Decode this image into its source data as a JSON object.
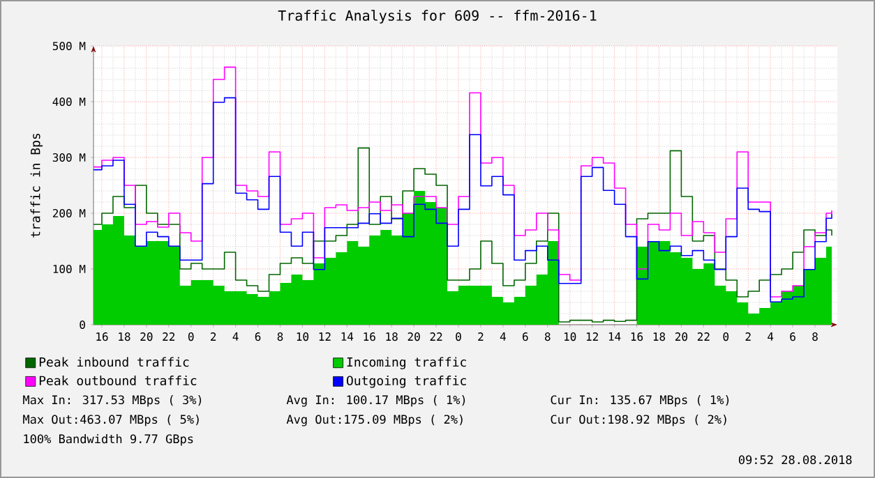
{
  "chart_data": {
    "type": "step",
    "title": "Traffic Analysis for 609 -- ffm-2016-1",
    "ylabel": "traffic in Bps",
    "x": [
      "2018-08-25T15:15",
      "2018-08-25T16:00",
      "2018-08-25T17:00",
      "2018-08-25T18:00",
      "2018-08-25T19:00",
      "2018-08-25T20:00",
      "2018-08-25T21:00",
      "2018-08-25T22:00",
      "2018-08-25T23:00",
      "2018-08-26T00:00",
      "2018-08-26T01:00",
      "2018-08-26T02:00",
      "2018-08-26T03:00",
      "2018-08-26T04:00",
      "2018-08-26T05:00",
      "2018-08-26T06:00",
      "2018-08-26T07:00",
      "2018-08-26T08:00",
      "2018-08-26T09:00",
      "2018-08-26T10:00",
      "2018-08-26T11:00",
      "2018-08-26T12:00",
      "2018-08-26T13:00",
      "2018-08-26T14:00",
      "2018-08-26T15:00",
      "2018-08-26T16:00",
      "2018-08-26T17:00",
      "2018-08-26T18:00",
      "2018-08-26T19:00",
      "2018-08-26T20:00",
      "2018-08-26T21:00",
      "2018-08-26T22:00",
      "2018-08-26T23:00",
      "2018-08-27T00:00",
      "2018-08-27T01:00",
      "2018-08-27T02:00",
      "2018-08-27T03:00",
      "2018-08-27T04:00",
      "2018-08-27T05:00",
      "2018-08-27T06:00",
      "2018-08-27T07:00",
      "2018-08-27T08:00",
      "2018-08-27T09:00",
      "2018-08-27T10:00",
      "2018-08-27T11:00",
      "2018-08-27T12:00",
      "2018-08-27T13:00",
      "2018-08-27T14:00",
      "2018-08-27T15:00",
      "2018-08-27T16:00",
      "2018-08-27T17:00",
      "2018-08-27T18:00",
      "2018-08-27T19:00",
      "2018-08-27T20:00",
      "2018-08-27T21:00",
      "2018-08-27T22:00",
      "2018-08-27T23:00",
      "2018-08-28T00:00",
      "2018-08-28T01:00",
      "2018-08-28T02:00",
      "2018-08-28T03:00",
      "2018-08-28T04:00",
      "2018-08-28T05:00",
      "2018-08-28T06:00",
      "2018-08-28T07:00",
      "2018-08-28T08:00",
      "2018-08-28T09:00",
      "2018-08-28T09:30"
    ],
    "series": [
      {
        "name": "Peak inbound traffic",
        "color": "#006600",
        "values": [
          180,
          200,
          230,
          210,
          250,
          200,
          180,
          180,
          100,
          110,
          100,
          100,
          130,
          80,
          70,
          60,
          90,
          110,
          120,
          110,
          150,
          150,
          160,
          180,
          317,
          180,
          230,
          190,
          240,
          280,
          270,
          250,
          80,
          80,
          100,
          150,
          110,
          70,
          80,
          110,
          150,
          200,
          5,
          8,
          8,
          5,
          8,
          6,
          8,
          190,
          200,
          200,
          312,
          230,
          150,
          160,
          100,
          80,
          50,
          60,
          80,
          90,
          100,
          130,
          170,
          160,
          170,
          160
        ]
      },
      {
        "name": "Incoming traffic",
        "type": "area",
        "color": "#00cc00",
        "values": [
          170,
          180,
          195,
          160,
          140,
          150,
          150,
          140,
          70,
          80,
          80,
          70,
          60,
          60,
          55,
          50,
          60,
          75,
          90,
          80,
          110,
          120,
          130,
          150,
          140,
          160,
          170,
          160,
          200,
          240,
          220,
          210,
          60,
          70,
          70,
          70,
          50,
          40,
          50,
          70,
          90,
          150,
          0,
          0,
          0,
          0,
          0,
          0,
          0,
          140,
          150,
          150,
          130,
          120,
          100,
          110,
          70,
          60,
          40,
          20,
          30,
          40,
          60,
          70,
          100,
          120,
          140,
          136
        ]
      },
      {
        "name": "Peak outbound traffic",
        "color": "#ff00ff",
        "values": [
          283,
          295,
          300,
          250,
          180,
          185,
          175,
          200,
          165,
          150,
          300,
          440,
          462,
          250,
          240,
          230,
          310,
          180,
          190,
          200,
          120,
          210,
          215,
          205,
          210,
          220,
          205,
          215,
          200,
          230,
          230,
          210,
          180,
          230,
          416,
          290,
          300,
          250,
          160,
          170,
          200,
          170,
          90,
          80,
          285,
          300,
          290,
          245,
          180,
          100,
          180,
          170,
          200,
          160,
          185,
          165,
          130,
          190,
          310,
          220,
          220,
          50,
          60,
          70,
          140,
          165,
          200,
          205
        ]
      },
      {
        "name": "Outgoing traffic",
        "color": "#0000ff",
        "values": [
          278,
          285,
          295,
          216,
          141,
          166,
          158,
          141,
          116,
          116,
          253,
          399,
          407,
          236,
          224,
          207,
          266,
          166,
          141,
          166,
          99,
          174,
          174,
          174,
          182,
          199,
          182,
          191,
          158,
          216,
          207,
          182,
          141,
          207,
          341,
          249,
          266,
          233,
          116,
          133,
          141,
          116,
          74,
          74,
          266,
          282,
          241,
          216,
          158,
          82,
          149,
          133,
          141,
          124,
          133,
          116,
          99,
          158,
          245,
          207,
          203,
          41,
          46,
          50,
          99,
          149,
          191,
          199
        ]
      }
    ],
    "xlim": [
      "2018-08-25T15:15",
      "2018-08-28T10:00"
    ],
    "xticks": [
      {
        "value": "2018-08-25T16:00",
        "label": "16"
      },
      {
        "value": "2018-08-25T18:00",
        "label": "18"
      },
      {
        "value": "2018-08-25T20:00",
        "label": "20"
      },
      {
        "value": "2018-08-25T22:00",
        "label": "22"
      },
      {
        "value": "2018-08-26T00:00",
        "label": "0"
      },
      {
        "value": "2018-08-26T02:00",
        "label": "2"
      },
      {
        "value": "2018-08-26T04:00",
        "label": "4"
      },
      {
        "value": "2018-08-26T06:00",
        "label": "6"
      },
      {
        "value": "2018-08-26T08:00",
        "label": "8"
      },
      {
        "value": "2018-08-26T10:00",
        "label": "10"
      },
      {
        "value": "2018-08-26T12:00",
        "label": "12"
      },
      {
        "value": "2018-08-26T14:00",
        "label": "14"
      },
      {
        "value": "2018-08-26T16:00",
        "label": "16"
      },
      {
        "value": "2018-08-26T18:00",
        "label": "18"
      },
      {
        "value": "2018-08-26T20:00",
        "label": "20"
      },
      {
        "value": "2018-08-26T22:00",
        "label": "22"
      },
      {
        "value": "2018-08-27T00:00",
        "label": "0"
      },
      {
        "value": "2018-08-27T02:00",
        "label": "2"
      },
      {
        "value": "2018-08-27T04:00",
        "label": "4"
      },
      {
        "value": "2018-08-27T06:00",
        "label": "6"
      },
      {
        "value": "2018-08-27T08:00",
        "label": "8"
      },
      {
        "value": "2018-08-27T10:00",
        "label": "10"
      },
      {
        "value": "2018-08-27T12:00",
        "label": "12"
      },
      {
        "value": "2018-08-27T14:00",
        "label": "14"
      },
      {
        "value": "2018-08-27T16:00",
        "label": "16"
      },
      {
        "value": "2018-08-27T18:00",
        "label": "18"
      },
      {
        "value": "2018-08-27T20:00",
        "label": "20"
      },
      {
        "value": "2018-08-27T22:00",
        "label": "22"
      },
      {
        "value": "2018-08-28T00:00",
        "label": "0"
      },
      {
        "value": "2018-08-28T02:00",
        "label": "2"
      },
      {
        "value": "2018-08-28T04:00",
        "label": "4"
      },
      {
        "value": "2018-08-28T06:00",
        "label": "6"
      },
      {
        "value": "2018-08-28T08:00",
        "label": "8"
      }
    ],
    "ylim": [
      0,
      500
    ],
    "yticks": [
      0,
      {
        "value": 100,
        "label": "100 M"
      },
      {
        "value": 200,
        "label": "200 M"
      },
      {
        "value": 300,
        "label": "300 M"
      },
      {
        "value": 400,
        "label": "400 M"
      },
      {
        "value": 500,
        "label": "500 M"
      }
    ],
    "grid": true,
    "legend": "bottom",
    "annotations": [
      "Max In: 317.53 MBps ( 3%)",
      "Avg In: 100.17 MBps ( 1%)",
      "Cur In: 135.67 MBps ( 1%)",
      "Max Out:463.07 MBps ( 5%)",
      "Avg Out:175.09 MBps ( 2%)",
      "Cur Out:198.92 MBps ( 2%)",
      "100% Bandwidth 9.77 GBps",
      "09:52 28.08.2018"
    ]
  }
}
